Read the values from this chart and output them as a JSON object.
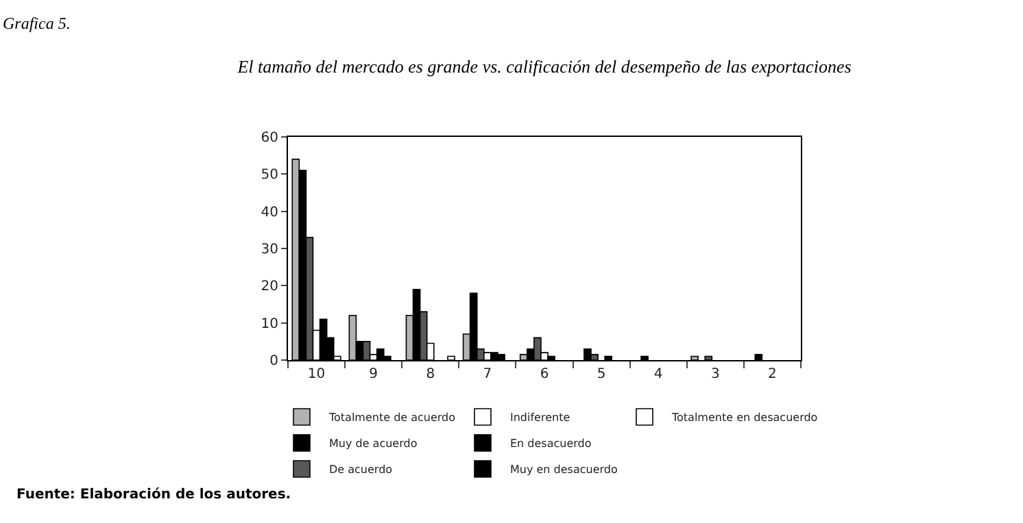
{
  "chart_data": {
    "type": "bar",
    "title": "El tamaño del mercado es grande vs. calificación del desempeño de las exportaciones",
    "categories": [
      "10",
      "9",
      "8",
      "7",
      "6",
      "5",
      "4",
      "3",
      "2"
    ],
    "series": [
      {
        "name": "Totalmente de acuerdo",
        "color": "#b1b1b4",
        "values": [
          54,
          12,
          12,
          7,
          1.5,
          null,
          null,
          1,
          null
        ]
      },
      {
        "name": "Muy de acuerdo",
        "color": "#000000",
        "values": [
          51,
          5,
          19,
          18,
          3,
          3,
          1,
          null,
          1.5
        ]
      },
      {
        "name": "De acuerdo",
        "color": "#58585b",
        "values": [
          33,
          5,
          13,
          3,
          6,
          1.5,
          null,
          1,
          null
        ]
      },
      {
        "name": "Indiferente",
        "color": "#ffffff",
        "values": [
          8,
          1.5,
          4.5,
          2,
          2,
          null,
          null,
          null,
          null
        ]
      },
      {
        "name": "En desacuerdo",
        "color": "#000000",
        "values": [
          11,
          3,
          null,
          2,
          1,
          1,
          null,
          null,
          null
        ]
      },
      {
        "name": "Muy en desacuerdo",
        "color": "#000000",
        "values": [
          6,
          1,
          null,
          1.5,
          null,
          null,
          null,
          null,
          null
        ]
      },
      {
        "name": "Totalmente en desacuerdo",
        "color": "#ffffff",
        "values": [
          1,
          null,
          1,
          null,
          null,
          null,
          null,
          null,
          null
        ]
      }
    ],
    "ylim": [
      0,
      60
    ],
    "yticks": [
      0,
      10,
      20,
      30,
      40,
      50,
      60
    ],
    "legend": "bottom",
    "annotations": [
      "Grafica 5.",
      "Fuente: Elaboración de los autores."
    ]
  }
}
